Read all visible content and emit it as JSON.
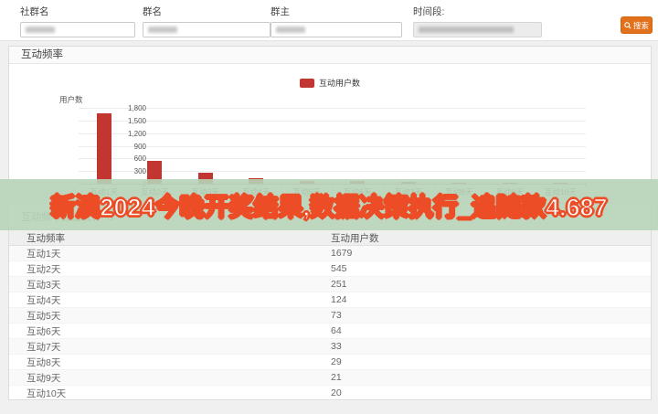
{
  "filters": {
    "fields": [
      {
        "label": "社群名",
        "value": "",
        "masked": true,
        "disabled": false
      },
      {
        "label": "群名",
        "value": "",
        "masked": true,
        "disabled": false
      },
      {
        "label": "群主",
        "value": "",
        "masked": true,
        "disabled": false
      },
      {
        "label": "时间段:",
        "value": "",
        "masked": true,
        "disabled": true
      }
    ],
    "search_label": "搜索"
  },
  "chart_card": {
    "title": "互动频率"
  },
  "chart_data": {
    "type": "bar",
    "title": "互动频率",
    "legend": [
      {
        "name": "互动用户数",
        "color": "#c23531"
      }
    ],
    "legend_position": "top-center",
    "ylabel": "用户数",
    "xlabel": "",
    "categories": [
      "互动1天",
      "互动2天",
      "互动3天",
      "互动4天",
      "互动5天",
      "互动6天",
      "互动7天",
      "互动8天",
      "互动9天",
      "互动10天"
    ],
    "values": [
      1679,
      545,
      251,
      124,
      73,
      64,
      33,
      29,
      21,
      20
    ],
    "ylim": [
      0,
      1800
    ],
    "ytick_interval": 300,
    "ytick_labels": [
      "1,800",
      "1,500",
      "1,200",
      "900",
      "600",
      "300",
      "0"
    ],
    "grid": true,
    "bar_color": "#c23531"
  },
  "banner": {
    "text": "新澳2024今晚开奖结果,数据决策执行_追随款4.687",
    "bg_color": "#b6d4b8",
    "text_color": "#ffffff",
    "outline_color": "#ec4c26"
  },
  "table_card": {
    "title": "互动频率数据统计",
    "columns": [
      "互动频率",
      "互动用户数"
    ],
    "rows": [
      {
        "freq": "互动1天",
        "users": "1679"
      },
      {
        "freq": "互动2天",
        "users": "545"
      },
      {
        "freq": "互动3天",
        "users": "251"
      },
      {
        "freq": "互动4天",
        "users": "124"
      },
      {
        "freq": "互动5天",
        "users": "73"
      },
      {
        "freq": "互动6天",
        "users": "64"
      },
      {
        "freq": "互动7天",
        "users": "33"
      },
      {
        "freq": "互动8天",
        "users": "29"
      },
      {
        "freq": "互动9天",
        "users": "21"
      },
      {
        "freq": "互动10天",
        "users": "20"
      }
    ]
  },
  "colors": {
    "accent_orange": "#e2711c",
    "bar_red": "#c23531",
    "banner_green": "#b6d4b8",
    "banner_outline": "#ec4c26"
  }
}
